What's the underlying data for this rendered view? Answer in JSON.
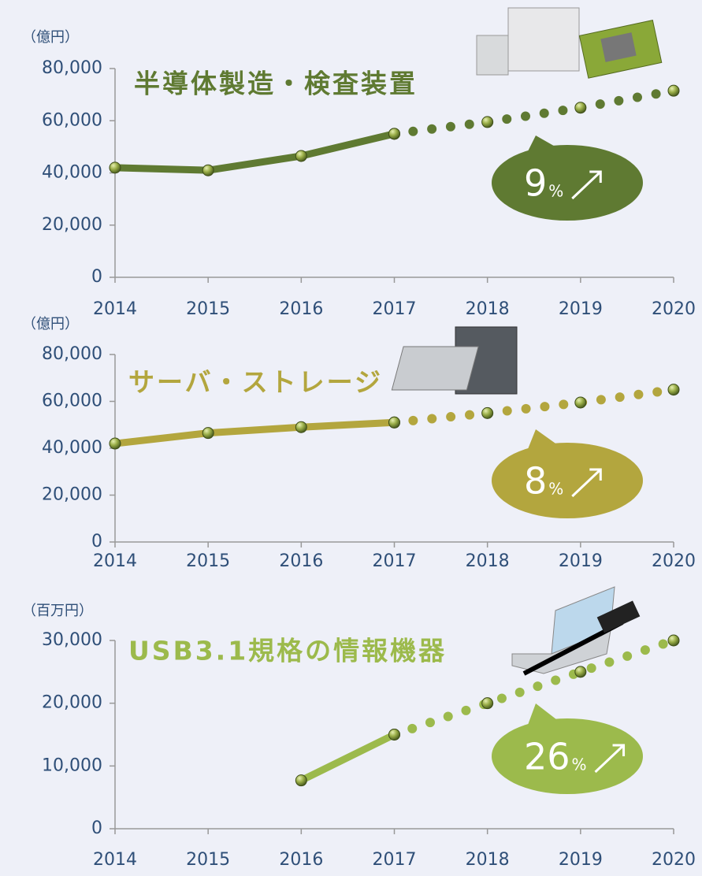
{
  "chart_data": [
    {
      "type": "line",
      "title": "半導体製造・検査装置",
      "y_unit_label": "（億円）",
      "categories": [
        "2014",
        "2015",
        "2016",
        "2017",
        "2018",
        "2019",
        "2020"
      ],
      "ylim": [
        0,
        80000
      ],
      "yticks": [
        0,
        {
          "value": 20000,
          "label": "20,000"
        },
        {
          "value": 40000,
          "label": "40,000"
        },
        {
          "value": 60000,
          "label": "60,000"
        },
        {
          "value": 80000,
          "label": "80,000"
        }
      ],
      "series": [
        {
          "color": "#5f7a32",
          "line_style": "solid",
          "values": [
            42000,
            41000,
            46500,
            55000,
            null,
            null,
            null
          ]
        },
        {
          "color": "#5f7a32",
          "line_style": "dotted",
          "values": [
            null,
            null,
            null,
            55000,
            59500,
            65000,
            71500
          ]
        }
      ],
      "callout": {
        "number": "9",
        "unit": "%"
      }
    },
    {
      "type": "line",
      "title": "サーバ・ストレージ",
      "y_unit_label": "（億円）",
      "categories": [
        "2014",
        "2015",
        "2016",
        "2017",
        "2018",
        "2019",
        "2020"
      ],
      "ylim": [
        0,
        80000
      ],
      "yticks": [
        0,
        {
          "value": 20000,
          "label": "20,000"
        },
        {
          "value": 40000,
          "label": "40,000"
        },
        {
          "value": 60000,
          "label": "60,000"
        },
        {
          "value": 80000,
          "label": "80,000"
        }
      ],
      "series": [
        {
          "color": "#b3a63e",
          "line_style": "solid",
          "values": [
            42000,
            46500,
            49000,
            51000,
            null,
            null,
            null
          ]
        },
        {
          "color": "#b3a63e",
          "line_style": "dotted",
          "values": [
            null,
            null,
            null,
            51000,
            55000,
            59500,
            65000
          ]
        }
      ],
      "callout": {
        "number": "8",
        "unit": "%"
      }
    },
    {
      "type": "line",
      "title": "USB3.1規格の情報機器",
      "y_unit_label": "（百万円）",
      "categories": [
        "2014",
        "2015",
        "2016",
        "2017",
        "2018",
        "2019",
        "2020"
      ],
      "ylim": [
        0,
        30000
      ],
      "yticks": [
        0,
        {
          "value": 10000,
          "label": "10,000"
        },
        {
          "value": 20000,
          "label": "20,000"
        },
        {
          "value": 30000,
          "label": "30,000"
        }
      ],
      "series": [
        {
          "color": "#9cba4c",
          "line_style": "solid",
          "values": [
            null,
            null,
            7700,
            15000,
            null,
            null,
            null
          ]
        },
        {
          "color": "#9cba4c",
          "line_style": "dotted",
          "values": [
            null,
            null,
            null,
            15000,
            20000,
            25000,
            30000
          ]
        }
      ],
      "callout": {
        "number": "26",
        "unit": "%"
      }
    }
  ]
}
